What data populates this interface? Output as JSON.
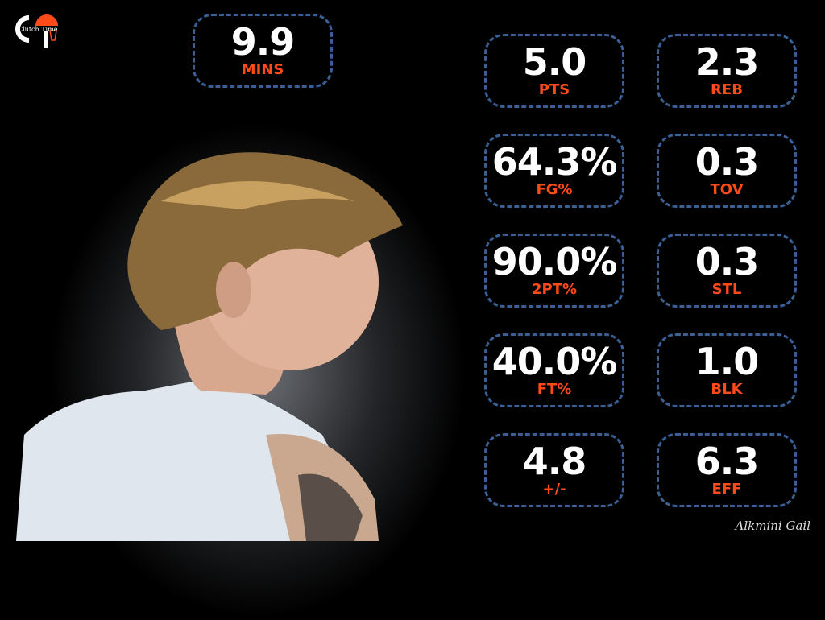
{
  "brand": {
    "logo_text": "Clutch Time",
    "signature": "Alkmini Gail",
    "accent": "#ff4a1a",
    "border": "#3a5f95"
  },
  "stats": {
    "mins": {
      "value": "9.9",
      "label": "MINS"
    },
    "pts": {
      "value": "5.0",
      "label": "PTS"
    },
    "reb": {
      "value": "2.3",
      "label": "REB"
    },
    "fg": {
      "value": "64.3%",
      "label": "FG%"
    },
    "tov": {
      "value": "0.3",
      "label": "TOV"
    },
    "two": {
      "value": "90.0%",
      "label": "2PT%"
    },
    "stl": {
      "value": "0.3",
      "label": "STL"
    },
    "ft": {
      "value": "40.0%",
      "label": "FT%"
    },
    "blk": {
      "value": "1.0",
      "label": "BLK"
    },
    "pm": {
      "value": "4.8",
      "label": "+/-"
    },
    "eff": {
      "value": "6.3",
      "label": "EFF"
    }
  }
}
